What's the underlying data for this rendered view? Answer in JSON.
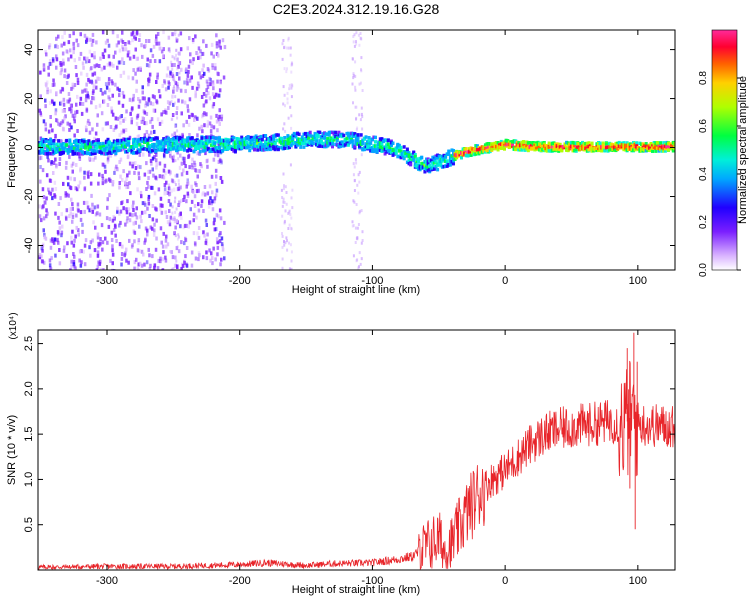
{
  "figure": {
    "title": "C2E3.2024.312.19.16.G28"
  },
  "chart_data": [
    {
      "type": "heatmap",
      "xlabel": "Height of straight line (km)",
      "ylabel": "Frequency (Hz)",
      "xlim": [
        -352,
        128
      ],
      "ylim": [
        -50,
        48
      ],
      "x_ticks": [
        -300,
        -200,
        -100,
        0,
        100
      ],
      "y_ticks": [
        -40,
        -20,
        0,
        20,
        40
      ],
      "colorbar": {
        "label": "Normalized spectral amplitude",
        "range": [
          0,
          1
        ],
        "ticks": [
          0.0,
          0.2,
          0.4,
          0.6,
          0.8
        ],
        "tick_labels": [
          "0.0",
          "0.2",
          "0.4",
          "0.6",
          "0.8"
        ]
      },
      "ridge": {
        "x": [
          -352,
          -300,
          -250,
          -200,
          -170,
          -150,
          -120,
          -100,
          -90,
          -80,
          -70,
          -60,
          -50,
          -40,
          -30,
          -20,
          -10,
          0,
          20,
          50,
          80,
          100,
          128
        ],
        "freq": [
          1,
          1,
          2,
          2,
          3,
          4,
          4,
          2,
          1,
          -1,
          -4,
          -7,
          -5,
          -3,
          -1,
          0,
          1,
          2,
          1,
          1,
          1,
          1,
          1
        ]
      }
    },
    {
      "type": "line",
      "xlabel": "Height of straight line (km)",
      "ylabel": "SNR (10 * v/v)",
      "y_multiplier": "(x10⁴)",
      "xlim": [
        -352,
        128
      ],
      "ylim": [
        0,
        2.65
      ],
      "x_ticks": [
        -300,
        -200,
        -100,
        0,
        100
      ],
      "y_ticks": [
        0.5,
        1.0,
        1.5,
        2.0,
        2.5
      ],
      "y_tick_labels": [
        "0.5",
        "1.0",
        "1.5",
        "2.0",
        "2.5"
      ],
      "color": "#e8252a",
      "series": [
        {
          "x": [
            -352,
            -300,
            -250,
            -200,
            -180,
            -150,
            -130,
            -100,
            -90,
            -80,
            -70,
            -60,
            -50,
            -45,
            -40,
            -30,
            -20,
            -10,
            0,
            10,
            20,
            30,
            40,
            50,
            60,
            70,
            80,
            90,
            95,
            100,
            110,
            128
          ],
          "y": [
            0.03,
            0.04,
            0.04,
            0.06,
            0.08,
            0.05,
            0.07,
            0.08,
            0.1,
            0.12,
            0.15,
            0.25,
            0.35,
            0.2,
            0.3,
            0.6,
            0.85,
            1.0,
            1.1,
            1.25,
            1.4,
            1.5,
            1.55,
            1.58,
            1.6,
            1.62,
            1.65,
            1.6,
            1.7,
            1.62,
            1.6,
            1.58
          ]
        }
      ]
    }
  ]
}
